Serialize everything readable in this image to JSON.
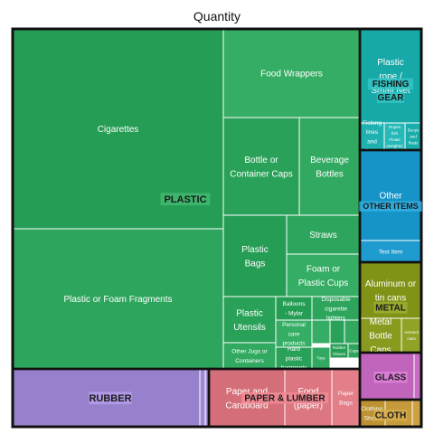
{
  "chart_data": {
    "type": "treemap",
    "title": "Quantity",
    "groups": [
      {
        "name": "PLASTIC",
        "color": "#2ea55c",
        "items": [
          {
            "label": "Cigarettes",
            "value": 21.0
          },
          {
            "label": "Plastic or Foam Fragments",
            "value": 20.2
          },
          {
            "label": "Food Wrappers",
            "value": 9.2
          },
          {
            "label": "Bottle or Container Caps",
            "value": 5.3
          },
          {
            "label": "Beverage Bottles",
            "value": 3.7
          },
          {
            "label": "Plastic Bags",
            "value": 3.8
          },
          {
            "label": "Straws",
            "value": 2.3
          },
          {
            "label": "Foam or Plastic Cups",
            "value": 2.1
          },
          {
            "label": "Plastic Utensils",
            "value": 2.4
          },
          {
            "label": "Other Jugs or Containers",
            "value": 1.3
          },
          {
            "label": "Balloons - Mylar",
            "value": 0.66
          },
          {
            "label": "Disposable cigarette lighters",
            "value": 0.66
          },
          {
            "label": "Personal care products",
            "value": 0.61
          },
          {
            "label": "Hard plastic fragments",
            "value": 0.5
          },
          {
            "label": "Toys",
            "value": 0.3
          },
          {
            "label": "Rubber Gloves",
            "value": 0.3
          },
          {
            "label": "Cups",
            "value": 0.2
          },
          {
            "label": "",
            "value": 0.2
          },
          {
            "label": "",
            "value": 0.15
          },
          {
            "label": "",
            "value": 0.15
          }
        ]
      },
      {
        "name": "RUBBER",
        "color": "#9f88d4",
        "items": [
          {
            "label": "",
            "value": 5.3
          },
          {
            "label": "",
            "value": 0.2
          },
          {
            "label": "",
            "value": 0.1
          }
        ]
      },
      {
        "name": "PAPER & LUMBER",
        "color": "#dc7680",
        "items": [
          {
            "label": "Paper and Cardboard",
            "value": 3.3
          },
          {
            "label": "Food (paper)",
            "value": 1.8
          },
          {
            "label": "Paper Bags",
            "value": 0.7
          }
        ]
      },
      {
        "name": "FISHING GEAR",
        "color": "#1fb0b0",
        "items": [
          {
            "label": "Plastic rope / Small Net",
            "value": 3.8
          },
          {
            "label": "Fishing lines and lines",
            "value": 0.3
          },
          {
            "label": "Ropes fish Floats (weights)",
            "value": 0.3
          },
          {
            "label": "Buoys and floats",
            "value": 0.3
          }
        ]
      },
      {
        "name": "OTHER ITEMS",
        "color": "#1f9ccf",
        "items": [
          {
            "label": "Other",
            "value": 3.5
          },
          {
            "label": "Test Item",
            "value": 0.9
          }
        ]
      },
      {
        "name": "METAL",
        "color": "#8a9a1e",
        "items": [
          {
            "label": "Aluminum or tin cans",
            "value": 2.2
          },
          {
            "label": "Metal Bottle Caps",
            "value": 1.3
          },
          {
            "label": "Aerosol cans",
            "value": 0.6
          }
        ]
      },
      {
        "name": "GLASS",
        "color": "#c96cc4",
        "items": [
          {
            "label": "",
            "value": 1.6
          },
          {
            "label": "",
            "value": 0.1
          }
        ]
      },
      {
        "name": "CLOTH",
        "color": "#c49a3a",
        "items": [
          {
            "label": "Clothing, Shoes",
            "value": 0.6
          },
          {
            "label": "",
            "value": 0.5
          },
          {
            "label": "",
            "value": 0.1
          }
        ]
      }
    ]
  }
}
